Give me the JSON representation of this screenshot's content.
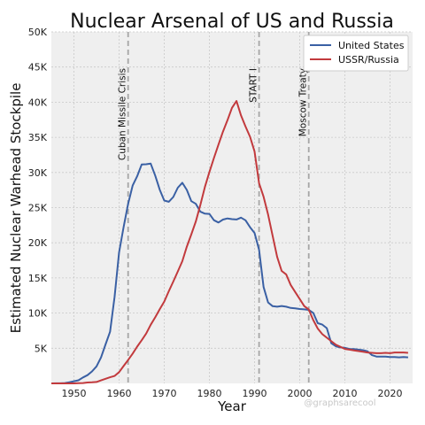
{
  "chart_data": {
    "type": "line",
    "title": "Nuclear Arsenal of US and Russia",
    "xlabel": "Year",
    "ylabel": "Estimated Nuclear Warhead Stockpile",
    "xlim": [
      1945,
      2025
    ],
    "ylim": [
      0,
      50000
    ],
    "x_ticks": [
      1950,
      1960,
      1970,
      1980,
      1990,
      2000,
      2010,
      2020
    ],
    "y_ticks": [
      5000,
      10000,
      15000,
      20000,
      25000,
      30000,
      35000,
      40000,
      45000,
      50000
    ],
    "y_tick_labels": [
      "5K",
      "10K",
      "15K",
      "20K",
      "25K",
      "30K",
      "35K",
      "40K",
      "45K",
      "50K"
    ],
    "grid": true,
    "legend_position": "top-right",
    "background": "#efefef",
    "series": [
      {
        "name": "United States",
        "color": "#3a60a4",
        "x": [
          1945,
          1946,
          1947,
          1948,
          1949,
          1950,
          1951,
          1952,
          1953,
          1954,
          1955,
          1956,
          1957,
          1958,
          1959,
          1960,
          1961,
          1962,
          1963,
          1964,
          1965,
          1966,
          1967,
          1968,
          1969,
          1970,
          1971,
          1972,
          1973,
          1974,
          1975,
          1976,
          1977,
          1978,
          1979,
          1980,
          1981,
          1982,
          1983,
          1984,
          1985,
          1986,
          1987,
          1988,
          1989,
          1990,
          1991,
          1992,
          1993,
          1994,
          1995,
          1996,
          1997,
          1998,
          1999,
          2000,
          2001,
          2002,
          2003,
          2004,
          2005,
          2006,
          2007,
          2008,
          2009,
          2010,
          2011,
          2012,
          2013,
          2014,
          2015,
          2016,
          2017,
          2018,
          2019,
          2020,
          2021,
          2022,
          2023,
          2024
        ],
        "values": [
          2,
          9,
          13,
          50,
          170,
          299,
          438,
          841,
          1169,
          1703,
          2422,
          3692,
          5543,
          7345,
          12298,
          18638,
          22229,
          25540,
          28133,
          29463,
          31139,
          31175,
          31255,
          29561,
          27552,
          26008,
          25830,
          26516,
          27835,
          28537,
          27519,
          25914,
          25542,
          24418,
          24138,
          24104,
          23208,
          22886,
          23305,
          23459,
          23368,
          23317,
          23575,
          23205,
          22217,
          21392,
          19008,
          13708,
          11511,
          10979,
          10904,
          11011,
          10903,
          10732,
          10685,
          10577,
          10526,
          10457,
          10027,
          8570,
          8360,
          7853,
          5709,
          5273,
          5113,
          5066,
          4897,
          4881,
          4804,
          4717,
          4571,
          4018,
          3822,
          3822,
          3805,
          3750,
          3750,
          3708,
          3748,
          3708
        ]
      },
      {
        "name": "USSR/Russia",
        "color": "#c23a3d",
        "x": [
          1945,
          1946,
          1947,
          1948,
          1949,
          1950,
          1951,
          1952,
          1953,
          1954,
          1955,
          1956,
          1957,
          1958,
          1959,
          1960,
          1961,
          1962,
          1963,
          1964,
          1965,
          1966,
          1967,
          1968,
          1969,
          1970,
          1971,
          1972,
          1973,
          1974,
          1975,
          1976,
          1977,
          1978,
          1979,
          1980,
          1981,
          1982,
          1983,
          1984,
          1985,
          1986,
          1987,
          1988,
          1989,
          1990,
          1991,
          1992,
          1993,
          1994,
          1995,
          1996,
          1997,
          1998,
          1999,
          2000,
          2001,
          2002,
          2003,
          2004,
          2005,
          2006,
          2007,
          2008,
          2009,
          2010,
          2011,
          2012,
          2013,
          2014,
          2015,
          2016,
          2017,
          2018,
          2019,
          2020,
          2021,
          2022,
          2023,
          2024
        ],
        "values": [
          0,
          0,
          0,
          0,
          1,
          5,
          25,
          50,
          120,
          150,
          200,
          426,
          660,
          869,
          1060,
          1605,
          2471,
          3322,
          4238,
          5221,
          6129,
          7089,
          8339,
          9399,
          10538,
          11643,
          13092,
          14478,
          15915,
          17385,
          19443,
          21205,
          23044,
          25393,
          27935,
          30062,
          32049,
          33952,
          35804,
          37431,
          39197,
          40159,
          38107,
          36538,
          35078,
          32980,
          28475,
          26546,
          24000,
          21000,
          18000,
          16000,
          15500,
          14000,
          13000,
          12000,
          11000,
          10500,
          9000,
          7800,
          7000,
          6500,
          6000,
          5500,
          5200,
          4900,
          4800,
          4700,
          4600,
          4500,
          4400,
          4350,
          4300,
          4300,
          4350,
          4300,
          4400,
          4400,
          4400,
          4350
        ]
      }
    ],
    "annotations": [
      {
        "x": 1962,
        "label": "Cuban Missile Crisis"
      },
      {
        "x": 1991,
        "label": "START I"
      },
      {
        "x": 2002,
        "label": "Moscow Treaty"
      }
    ],
    "watermark": "@graphsarecool"
  }
}
